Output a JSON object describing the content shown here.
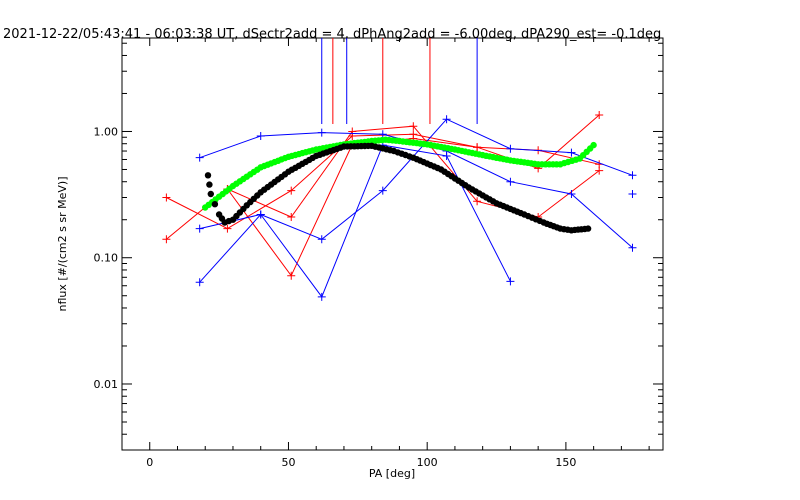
{
  "chart_data": {
    "type": "scatter",
    "title": "2021-12-22/05:43:41 - 06:03:38 UT, dSectr2add = 4, dPhAng2add = -6.00deg, dPA290_est=  -0.1deg",
    "xlabel": "PA [deg]",
    "ylabel": "nflux [#/(cm2 s sr MeV)]",
    "xlim": [
      -10,
      185
    ],
    "ylim": [
      0.003,
      5.5
    ],
    "yscale": "log",
    "grid": false,
    "x_ticks": [
      0,
      50,
      100,
      150
    ],
    "x_tick_labels": [
      "0",
      "50",
      "100",
      "150"
    ],
    "y_ticks": [
      0.01,
      0.1,
      1.0
    ],
    "y_tick_labels": [
      "0.01",
      "0.10",
      "1.00"
    ],
    "colors": {
      "red": "#ff0000",
      "blue": "#0000ff",
      "green": "#00ff00",
      "black": "#000000"
    },
    "vertical_markers": [
      {
        "color": "red",
        "x": [
          66,
          84,
          101
        ]
      },
      {
        "color": "blue",
        "x": [
          62,
          71,
          118
        ]
      }
    ],
    "series": [
      {
        "color": "red",
        "points": [
          [
            6,
            0.14
          ],
          [
            28,
            0.35
          ],
          [
            51,
            0.21
          ],
          [
            73,
            1.0
          ],
          [
            95,
            1.1
          ],
          [
            118,
            0.28
          ],
          [
            140,
            0.21
          ],
          [
            162,
            0.49
          ]
        ]
      },
      {
        "color": "red",
        "points": [
          [
            6,
            0.3
          ],
          [
            28,
            0.17
          ],
          [
            51,
            0.34
          ],
          [
            73,
            0.92
          ],
          [
            95,
            0.95
          ],
          [
            118,
            0.75
          ],
          [
            140,
            0.71
          ],
          [
            162,
            0.55
          ]
        ]
      },
      {
        "color": "red",
        "points": [
          [
            28,
            0.35
          ],
          [
            51,
            0.072
          ],
          [
            73,
            0.79
          ],
          [
            95,
            0.88
          ],
          [
            118,
            0.75
          ],
          [
            140,
            0.51
          ],
          [
            162,
            1.35
          ]
        ]
      },
      {
        "color": "blue",
        "points": [
          [
            18,
            0.62
          ],
          [
            40,
            0.92
          ],
          [
            62,
            0.98
          ],
          [
            84,
            0.95
          ],
          [
            107,
            0.7
          ],
          [
            130,
            0.4
          ],
          [
            152,
            0.32
          ],
          [
            174,
            0.12
          ]
        ]
      },
      {
        "color": "blue",
        "points": [
          [
            18,
            0.17
          ],
          [
            40,
            0.22
          ],
          [
            62,
            0.049
          ],
          [
            84,
            0.78
          ],
          [
            107,
            0.64
          ],
          [
            130,
            0.065
          ]
        ]
      },
      {
        "color": "blue",
        "points": [
          [
            18,
            0.064
          ],
          [
            40,
            0.22
          ],
          [
            62,
            0.14
          ],
          [
            84,
            0.34
          ],
          [
            107,
            1.25
          ],
          [
            130,
            0.73
          ],
          [
            152,
            0.68
          ],
          [
            174,
            0.45
          ]
        ]
      },
      {
        "color": "blue",
        "points": [
          [
            174,
            0.32
          ]
        ]
      }
    ],
    "fits": [
      {
        "color": "green",
        "points": [
          [
            20,
            0.25
          ],
          [
            30,
            0.37
          ],
          [
            40,
            0.52
          ],
          [
            50,
            0.63
          ],
          [
            60,
            0.72
          ],
          [
            70,
            0.79
          ],
          [
            80,
            0.84
          ],
          [
            85,
            0.86
          ],
          [
            90,
            0.84
          ],
          [
            100,
            0.79
          ],
          [
            110,
            0.72
          ],
          [
            120,
            0.65
          ],
          [
            130,
            0.59
          ],
          [
            140,
            0.55
          ],
          [
            148,
            0.55
          ],
          [
            155,
            0.61
          ],
          [
            160,
            0.78
          ]
        ]
      },
      {
        "color": "black",
        "points": [
          [
            21,
            0.45
          ],
          [
            22,
            0.32
          ],
          [
            25,
            0.22
          ],
          [
            27,
            0.19
          ],
          [
            30,
            0.2
          ],
          [
            35,
            0.26
          ],
          [
            40,
            0.33
          ],
          [
            50,
            0.48
          ],
          [
            60,
            0.64
          ],
          [
            70,
            0.76
          ],
          [
            80,
            0.77
          ],
          [
            88,
            0.7
          ],
          [
            95,
            0.62
          ],
          [
            105,
            0.5
          ],
          [
            115,
            0.36
          ],
          [
            125,
            0.27
          ],
          [
            135,
            0.22
          ],
          [
            142,
            0.19
          ],
          [
            148,
            0.17
          ],
          [
            152,
            0.165
          ],
          [
            158,
            0.17
          ]
        ]
      }
    ]
  }
}
